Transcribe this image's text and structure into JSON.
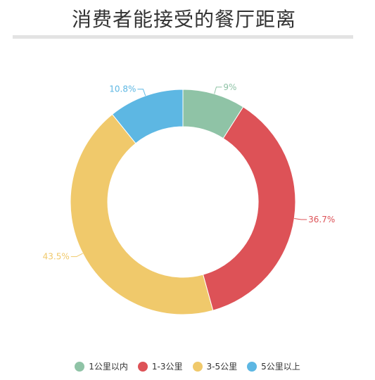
{
  "chart_data": {
    "type": "pie",
    "variant": "donut",
    "title": "消费者能接受的餐厅距离",
    "categories": [
      "1公里以内",
      "1-3公里",
      "3-5公里",
      "5公里以上"
    ],
    "values": [
      9,
      36.7,
      43.5,
      10.8
    ],
    "labels": [
      "9%",
      "36.7%",
      "43.5%",
      "10.8%"
    ],
    "colors": [
      "#8fc3a6",
      "#dd5257",
      "#f0c96b",
      "#5db7e3"
    ],
    "legend_position": "bottom"
  }
}
